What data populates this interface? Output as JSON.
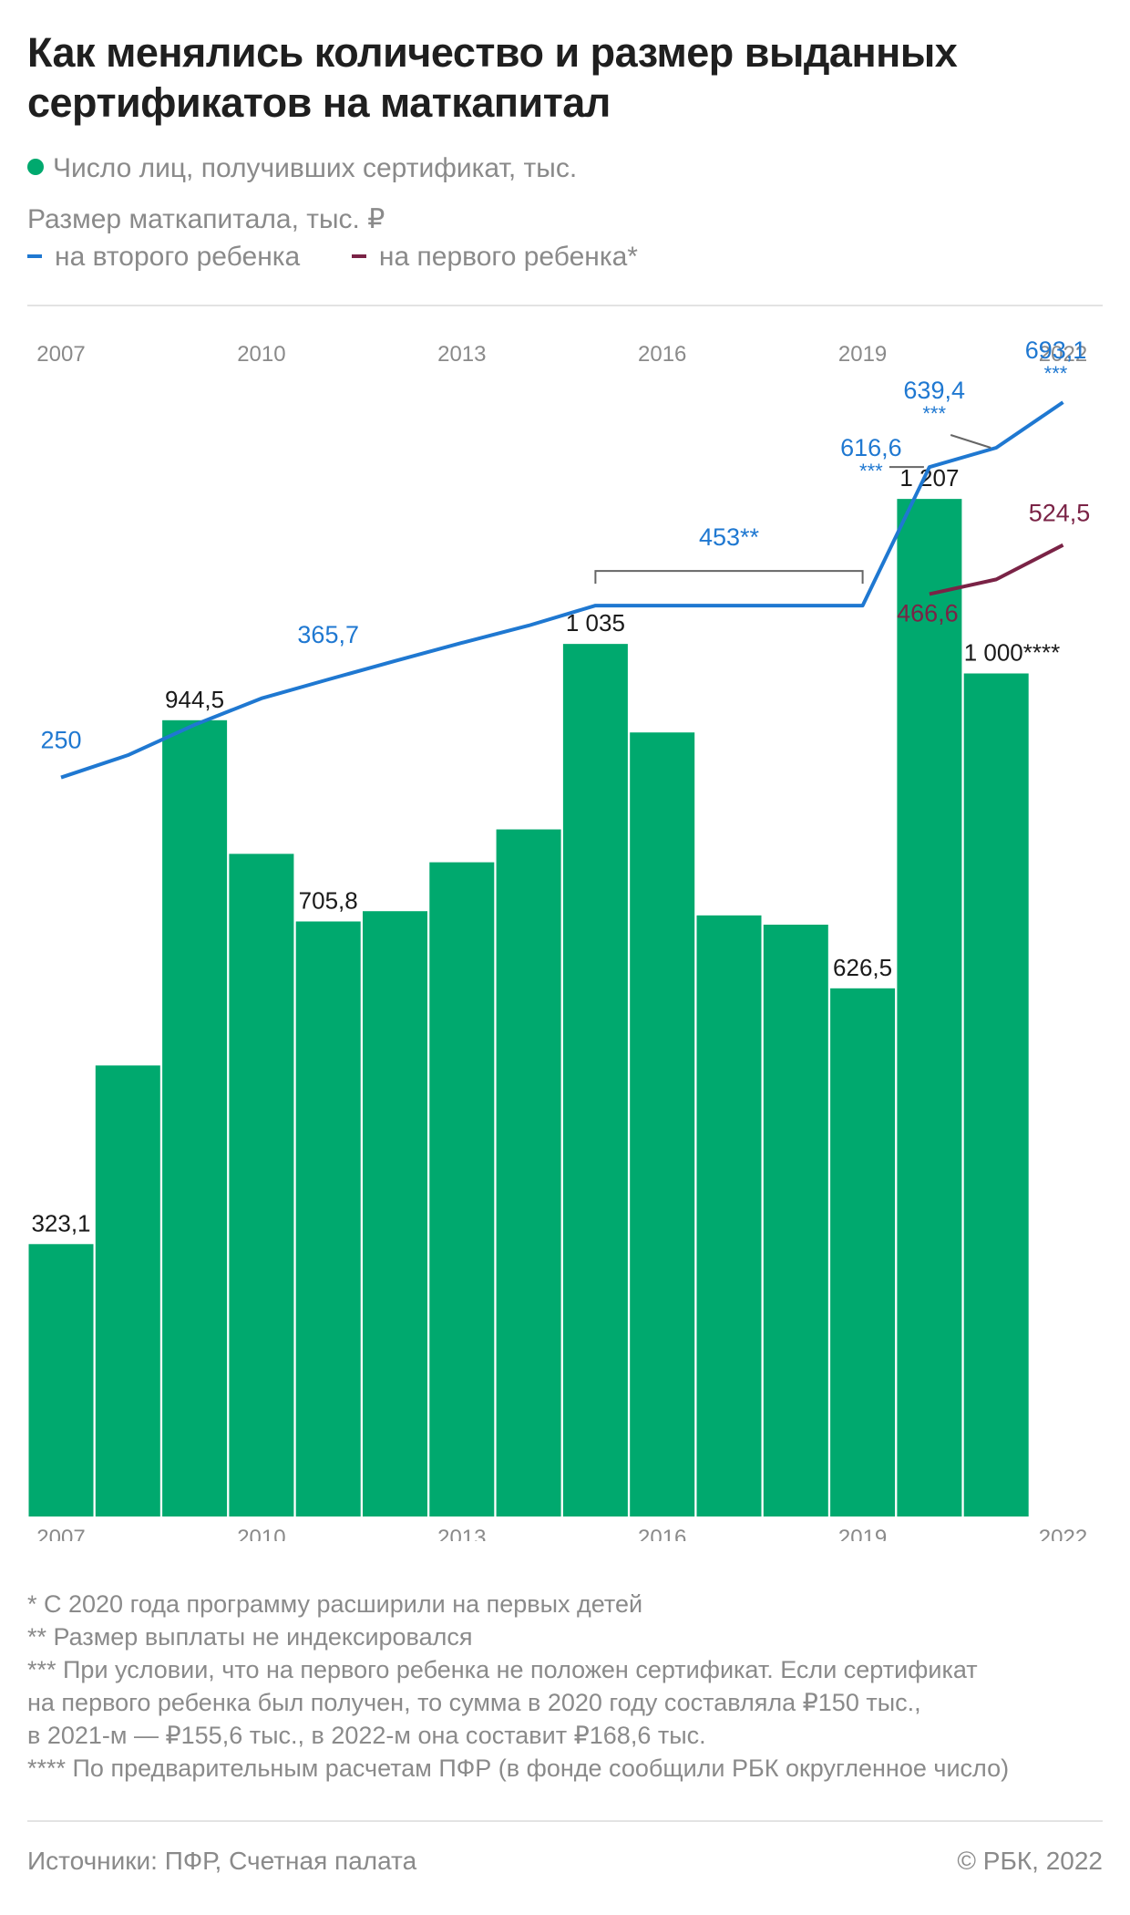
{
  "title": "Как менялись количество и размер выданных сертификатов на маткапитал",
  "legend": {
    "bars_label": "Число лиц, получивших сертификат, тыс.",
    "lines_subtitle": "Размер маткапитала, тыс. ₽",
    "second_child_label": "на второго ребенка",
    "first_child_label": "на первого ребенка*"
  },
  "colors": {
    "bars": "#00a96e",
    "second_child": "#1f78d1",
    "first_child": "#7a2346",
    "axis_text": "#8a8a8a",
    "bracket": "#666666"
  },
  "chart_data": {
    "type": "bar+line",
    "xlim": [
      2007,
      2022
    ],
    "x_ticks": [
      "2007",
      "2010",
      "2013",
      "2016",
      "2019",
      "2022"
    ],
    "bars": {
      "name": "Число лиц, получивших сертификат, тыс.",
      "x": [
        2007,
        2008,
        2009,
        2010,
        2011,
        2012,
        2013,
        2014,
        2015,
        2016,
        2017,
        2018,
        2019,
        2020,
        2021
      ],
      "values": [
        323.1,
        535,
        944.5,
        786,
        705.8,
        718,
        776,
        815,
        1035,
        930,
        713,
        702,
        626.5,
        1207,
        1000
      ],
      "labels": [
        "323,1",
        "",
        "944,5",
        "",
        "705,8",
        "",
        "",
        "",
        "1 035",
        "",
        "",
        "",
        "626,5",
        "1 207",
        "1 000****"
      ],
      "ylim": [
        0,
        1300
      ]
    },
    "lines": [
      {
        "name": "на второго ребенка",
        "x": [
          2007,
          2008,
          2009,
          2010,
          2011,
          2012,
          2013,
          2014,
          2015,
          2016,
          2017,
          2018,
          2019,
          2020,
          2021,
          2022
        ],
        "values": [
          250,
          276.3,
          312.2,
          343.4,
          365.7,
          387.6,
          408.96,
          429.4,
          453,
          453,
          453,
          453,
          453,
          616.6,
          639.4,
          693.1
        ]
      },
      {
        "name": "на первого ребенка*",
        "x": [
          2020,
          2021,
          2022
        ],
        "values": [
          466.6,
          483.9,
          524.5
        ]
      }
    ],
    "lines_ylim": [
      200,
      760
    ],
    "line_labels": [
      {
        "text": "250",
        "series": 0,
        "x": 2007
      },
      {
        "text": "365,7",
        "series": 0,
        "x": 2011
      },
      {
        "text": "453**",
        "series": 0,
        "x": 2017
      },
      {
        "text": "616,6",
        "series": 0,
        "x": 2020,
        "note": "***"
      },
      {
        "text": "639,4",
        "series": 0,
        "x": 2021,
        "note": "***"
      },
      {
        "text": "693,1",
        "series": 0,
        "x": 2022,
        "note": "***"
      },
      {
        "text": "466,6",
        "series": 1,
        "x": 2020
      },
      {
        "text": "524,5",
        "series": 1,
        "x": 2022
      }
    ]
  },
  "notes": [
    "* С 2020 года программу расширили на первых детей",
    "** Размер выплаты не индексировался",
    "*** При условии, что на первого ребенка не положен сертификат. Если сертификат",
    "на первого ребенка был получен, то сумма в 2020 году составляла ₽150 тыс.,",
    "в 2021-м — ₽155,6 тыс., в 2022-м она составит ₽168,6 тыс.",
    "**** По предварительным расчетам ПФР (в фонде сообщили РБК округленное число)"
  ],
  "footer": {
    "source": "Источники: ПФР, Счетная палата",
    "copyright": "© РБК, 2022"
  }
}
